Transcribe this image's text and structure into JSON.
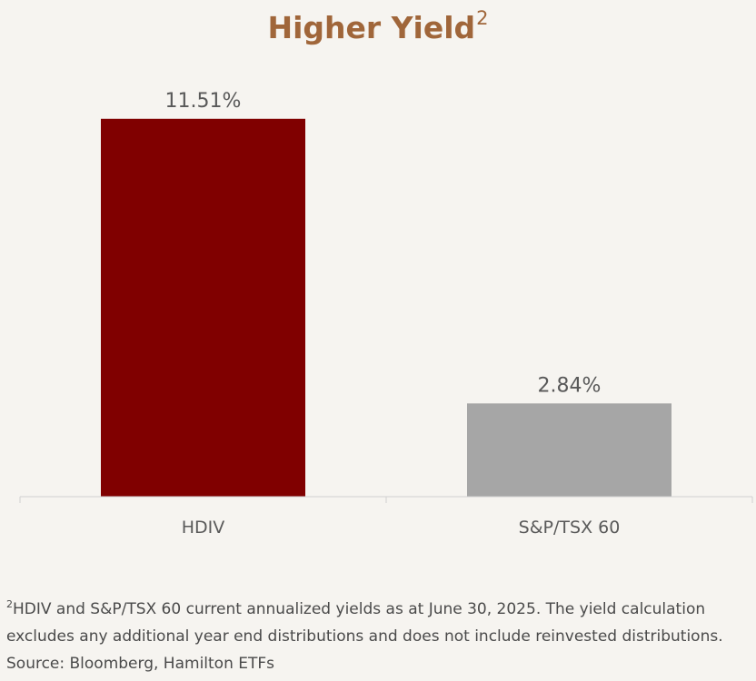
{
  "chart_data": {
    "type": "bar",
    "title": "Higher Yield",
    "title_superscript": "2",
    "categories": [
      "HDIV",
      "S&P/TSX 60"
    ],
    "values": [
      11.51,
      2.84
    ],
    "data_labels": [
      "11.51%",
      "2.84%"
    ],
    "colors": [
      "#800000",
      "#a6a6a6"
    ],
    "ylabel": "",
    "xlabel": "",
    "ylim": [
      0,
      12.5
    ],
    "grid": false,
    "legend": "none"
  },
  "footnote": {
    "marker": "2",
    "line1": "HDIV and S&P/TSX 60 current annualized yields as at June 30, 2025. The yield calculation",
    "line2": "excludes any additional year end distributions and does not include reinvested distributions.",
    "line3": "Source: Bloomberg, Hamilton ETFs"
  },
  "colors": {
    "title": "#a0663a",
    "background": "#f6f4f0",
    "axis": "#d0d0d0",
    "label_text": "#595959"
  }
}
